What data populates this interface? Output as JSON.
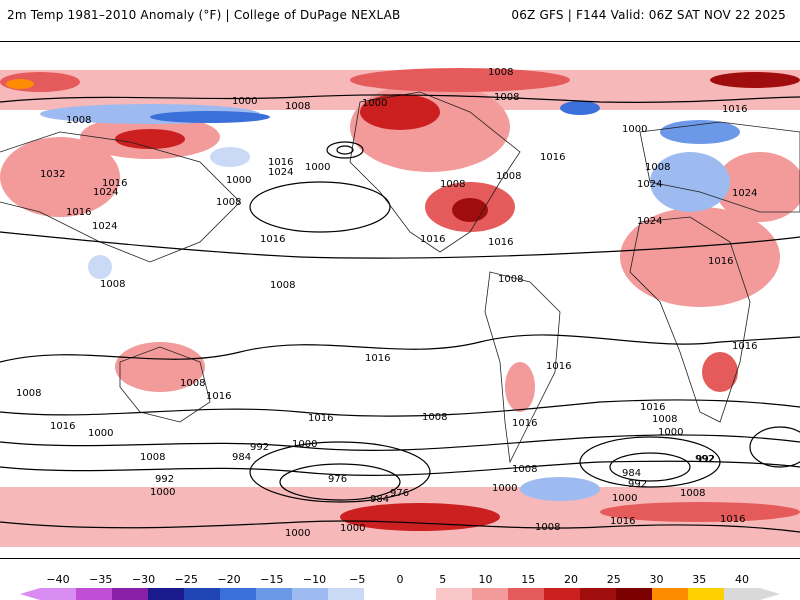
{
  "header": {
    "left_title": "2m Temp 1981–2010 Anomaly (°F) | College of DuPage NEXLAB",
    "right_title": "06Z GFS | F144 Valid: 06Z SAT NOV 22 2025"
  },
  "map": {
    "projection": "global equirectangular",
    "variable": "2m temperature anomaly and sea level pressure isobars",
    "isobar_labels": [
      "1008",
      "1000",
      "1008",
      "1000",
      "1008",
      "1016",
      "1008",
      "1000",
      "1032",
      "1024",
      "1016",
      "1000",
      "1016",
      "1000",
      "1024",
      "1008",
      "1008",
      "1016",
      "1024",
      "1016",
      "1008",
      "1016",
      "1016",
      "1008",
      "1008",
      "1008",
      "1016",
      "1008",
      "1024",
      "1024",
      "1024",
      "1016",
      "1016",
      "1008",
      "1016",
      "1016",
      "1016",
      "1008",
      "1016",
      "1008",
      "1016",
      "1000",
      "1016",
      "1016",
      "1008",
      "1008",
      "1000",
      "992",
      "1000",
      "992",
      "984",
      "976",
      "984",
      "976",
      "1000",
      "1008",
      "1000",
      "984",
      "992",
      "1008",
      "1000",
      "992",
      "1000",
      "1016",
      "1000",
      "992",
      "1008",
      "1016"
    ]
  },
  "colorbar": {
    "units": "°F",
    "labels": [
      "−40",
      "−35",
      "−30",
      "−25",
      "−20",
      "−15",
      "−10",
      "−5",
      "0",
      "5",
      "10",
      "15",
      "20",
      "25",
      "30",
      "35",
      "40"
    ],
    "colors": [
      "#d98cf2",
      "#c04fd6",
      "#8a1fa8",
      "#1a1a8c",
      "#1f46b4",
      "#3b6fd9",
      "#6c98e8",
      "#9dbbf0",
      "#c9d9f6",
      "#ffffff",
      "#ffffff",
      "#f8c6c6",
      "#f39a9a",
      "#e55a5a",
      "#cc1f1f",
      "#a00d0d",
      "#7a0000",
      "#ff8c00",
      "#ffd000",
      "#d9d9d9"
    ]
  }
}
